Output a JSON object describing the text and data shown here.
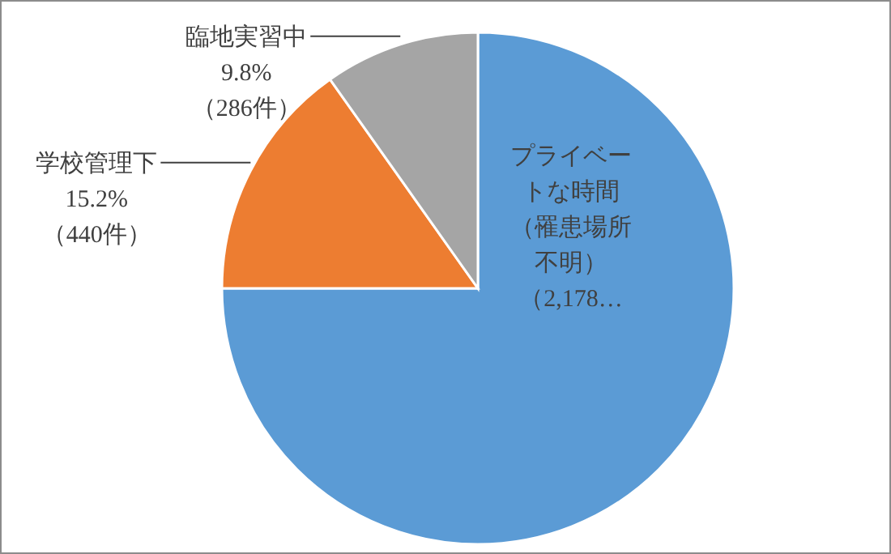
{
  "chart_data": {
    "type": "pie",
    "categories": [
      "プライベートな時間（罹患場所不明）",
      "学校管理下",
      "臨地実習中"
    ],
    "values": [
      75.0,
      15.2,
      9.8
    ],
    "colors": [
      "#5b9bd5",
      "#ed7d31",
      "#a5a5a5"
    ],
    "value_labels": [
      "（2,178…",
      "15.2%\n（440件）",
      "9.8%\n（286件）"
    ]
  }
}
